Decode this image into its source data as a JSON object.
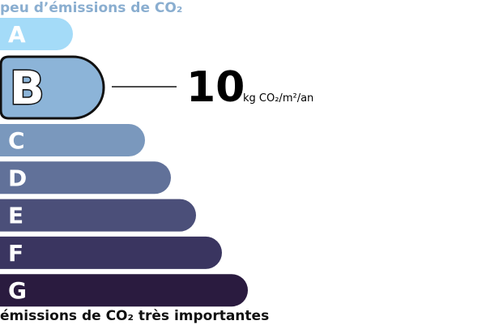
{
  "label_top": "peu d’émissions de CO₂",
  "label_bottom": "émissions de CO₂ très importantes",
  "classes": [
    {
      "letter": "A",
      "color": "#a4dbf8"
    },
    {
      "letter": "B",
      "color": "#8cb4d8"
    },
    {
      "letter": "C",
      "color": "#7a98bd"
    },
    {
      "letter": "D",
      "color": "#617199"
    },
    {
      "letter": "E",
      "color": "#4b4f79"
    },
    {
      "letter": "F",
      "color": "#3a3560"
    },
    {
      "letter": "G",
      "color": "#2a1b3f"
    }
  ],
  "highlighted": "B",
  "value": 10,
  "unit": "kg CO₂/m²/an"
}
